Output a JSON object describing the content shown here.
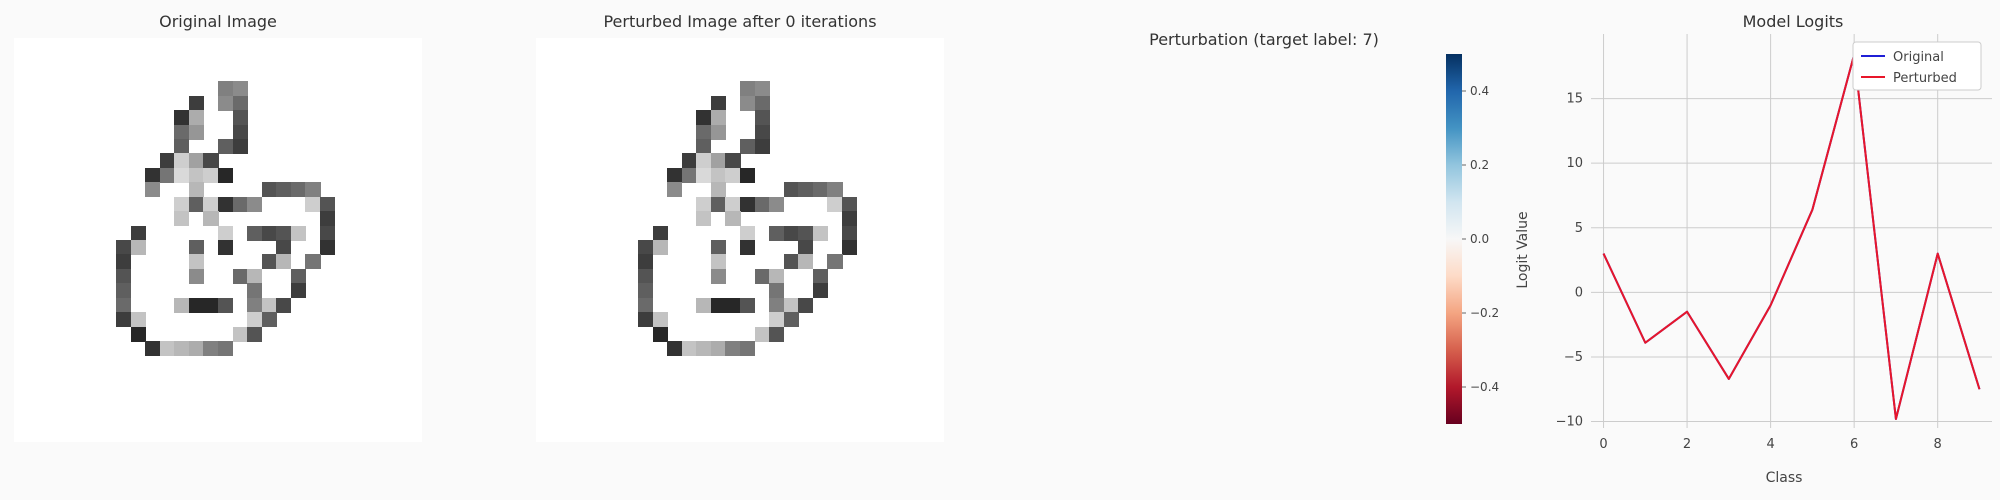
{
  "titles": {
    "original": "Original Image",
    "perturbed": "Perturbed Image after 0 iterations",
    "perturbation": "Perturbation (target label: 7)",
    "logits": "Model Logits"
  },
  "colors": {
    "original_line": "#1f1fd6",
    "perturbed_line": "#e8162a",
    "grid": "#cccccc",
    "background": "#fafafa"
  },
  "digit_cells": [
    [
      3,
      14,
      0.55
    ],
    [
      3,
      15,
      0.5
    ],
    [
      4,
      12,
      0.85
    ],
    [
      4,
      14,
      0.5
    ],
    [
      4,
      15,
      0.65
    ],
    [
      5,
      11,
      0.9
    ],
    [
      5,
      12,
      0.35
    ],
    [
      5,
      15,
      0.75
    ],
    [
      6,
      11,
      0.65
    ],
    [
      6,
      12,
      0.45
    ],
    [
      6,
      15,
      0.8
    ],
    [
      7,
      11,
      0.7
    ],
    [
      7,
      14,
      0.7
    ],
    [
      7,
      15,
      0.85
    ],
    [
      8,
      10,
      0.85
    ],
    [
      8,
      11,
      0.2
    ],
    [
      8,
      12,
      0.4
    ],
    [
      8,
      13,
      0.8
    ],
    [
      9,
      9,
      0.9
    ],
    [
      9,
      10,
      0.6
    ],
    [
      9,
      11,
      0.15
    ],
    [
      9,
      12,
      0.25
    ],
    [
      9,
      13,
      0.2
    ],
    [
      9,
      14,
      0.95
    ],
    [
      10,
      9,
      0.5
    ],
    [
      10,
      12,
      0.3
    ],
    [
      10,
      17,
      0.75
    ],
    [
      10,
      18,
      0.7
    ],
    [
      10,
      19,
      0.65
    ],
    [
      10,
      20,
      0.55
    ],
    [
      11,
      11,
      0.2
    ],
    [
      11,
      12,
      0.7
    ],
    [
      11,
      13,
      0.2
    ],
    [
      11,
      14,
      0.9
    ],
    [
      11,
      15,
      0.65
    ],
    [
      11,
      16,
      0.5
    ],
    [
      11,
      20,
      0.2
    ],
    [
      11,
      21,
      0.75
    ],
    [
      12,
      11,
      0.25
    ],
    [
      12,
      13,
      0.3
    ],
    [
      12,
      21,
      0.85
    ],
    [
      13,
      8,
      0.85
    ],
    [
      13,
      14,
      0.2
    ],
    [
      13,
      16,
      0.7
    ],
    [
      13,
      17,
      0.8
    ],
    [
      13,
      18,
      0.75
    ],
    [
      13,
      19,
      0.25
    ],
    [
      13,
      21,
      0.8
    ],
    [
      14,
      7,
      0.8
    ],
    [
      14,
      8,
      0.3
    ],
    [
      14,
      12,
      0.7
    ],
    [
      14,
      14,
      0.9
    ],
    [
      14,
      18,
      0.8
    ],
    [
      14,
      21,
      0.9
    ],
    [
      15,
      7,
      0.85
    ],
    [
      15,
      12,
      0.25
    ],
    [
      15,
      17,
      0.75
    ],
    [
      15,
      18,
      0.3
    ],
    [
      15,
      20,
      0.6
    ],
    [
      16,
      7,
      0.75
    ],
    [
      16,
      12,
      0.5
    ],
    [
      16,
      15,
      0.65
    ],
    [
      16,
      16,
      0.3
    ],
    [
      16,
      19,
      0.7
    ],
    [
      17,
      7,
      0.7
    ],
    [
      17,
      16,
      0.6
    ],
    [
      17,
      19,
      0.85
    ],
    [
      18,
      7,
      0.65
    ],
    [
      18,
      11,
      0.3
    ],
    [
      18,
      12,
      0.95
    ],
    [
      18,
      13,
      0.95
    ],
    [
      18,
      14,
      0.75
    ],
    [
      18,
      16,
      0.55
    ],
    [
      18,
      17,
      0.25
    ],
    [
      18,
      18,
      0.8
    ],
    [
      19,
      7,
      0.85
    ],
    [
      19,
      8,
      0.25
    ],
    [
      19,
      16,
      0.2
    ],
    [
      19,
      17,
      0.7
    ],
    [
      20,
      8,
      0.95
    ],
    [
      20,
      15,
      0.25
    ],
    [
      20,
      16,
      0.75
    ],
    [
      21,
      9,
      0.9
    ],
    [
      21,
      10,
      0.25
    ],
    [
      21,
      11,
      0.3
    ],
    [
      21,
      12,
      0.35
    ],
    [
      21,
      13,
      0.55
    ],
    [
      21,
      14,
      0.6
    ]
  ],
  "colorbar": {
    "ticks": [
      0.4,
      0.2,
      0.0,
      -0.2,
      -0.4
    ],
    "tick_labels": [
      "0.4",
      "0.2",
      "0.0",
      "−0.2",
      "−0.4"
    ],
    "range": [
      -0.5,
      0.5
    ]
  },
  "chart_data": [
    {
      "type": "heatmap",
      "title": "Original Image",
      "grid_size": 28,
      "colormap": "gray_r"
    },
    {
      "type": "heatmap",
      "title": "Perturbed Image after 0 iterations",
      "grid_size": 28,
      "colormap": "gray_r"
    },
    {
      "type": "heatmap",
      "title": "Perturbation (target label: 7)",
      "colormap": "RdBu",
      "vmin": -0.5,
      "vmax": 0.5,
      "values": "all zero"
    },
    {
      "type": "line",
      "title": "Model Logits",
      "xlabel": "Class",
      "ylabel": "Logit Value",
      "x": [
        0,
        1,
        2,
        3,
        4,
        5,
        6,
        7,
        8,
        9
      ],
      "xlim": [
        -0.3,
        9.3
      ],
      "ylim": [
        -10.5,
        20
      ],
      "xticks": [
        0,
        2,
        4,
        6,
        8
      ],
      "yticks": [
        -10,
        -5,
        0,
        5,
        10,
        15
      ],
      "ytick_labels": [
        "−10",
        "−5",
        "0",
        "5",
        "10",
        "15"
      ],
      "series": [
        {
          "name": "Original",
          "values": [
            3.0,
            -3.9,
            -1.5,
            -6.7,
            -1.0,
            6.4,
            18.4,
            -9.8,
            3.0,
            -7.5
          ]
        },
        {
          "name": "Perturbed",
          "values": [
            3.0,
            -3.9,
            -1.5,
            -6.7,
            -1.0,
            6.4,
            18.4,
            -9.8,
            3.0,
            -7.5
          ]
        }
      ],
      "legend": "top-right",
      "grid": true
    }
  ]
}
